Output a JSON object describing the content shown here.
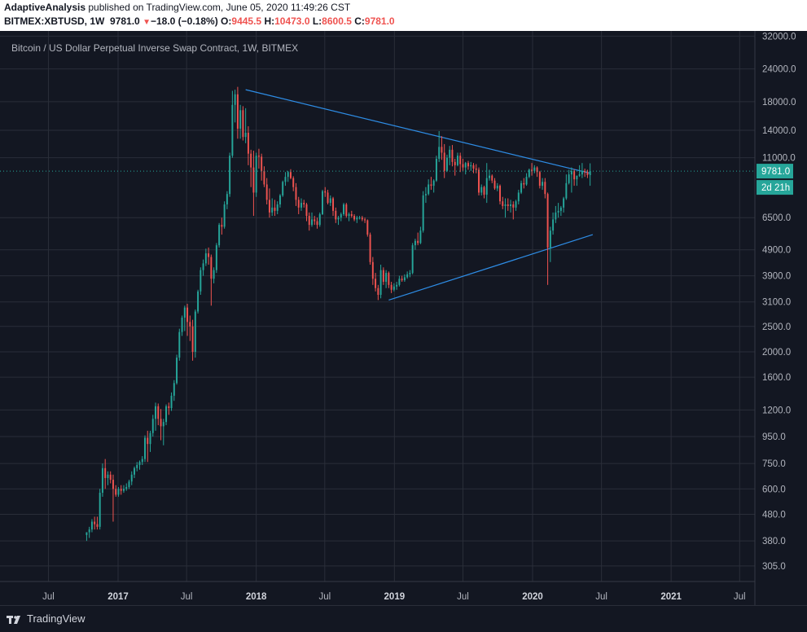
{
  "header": {
    "author": "AdaptiveAnalysis",
    "published": " published on TradingView.com, June 05, 2020 11:49:26 CST",
    "symbol": "BITMEX:XBTUSD, 1W",
    "last": "9781.0",
    "change": "−18.0 (−0.18%)",
    "open_label": "O:",
    "open": "9445.5",
    "high_label": "H:",
    "high": "10473.0",
    "low_label": "L:",
    "low": "8600.5",
    "close_label": "C:",
    "close": "9781.0"
  },
  "footer": {
    "brand": "TradingView",
    "logo_icon": "tradingview-logo-icon"
  },
  "chart_data": {
    "type": "candlestick",
    "title": "Bitcoin / US Dollar Perpetual Inverse Swap Contract, 1W, BITMEX",
    "y_scale": "log",
    "ylim": [
      266,
      33500
    ],
    "x_ticks": [
      "Jul",
      "2017",
      "Jul",
      "2018",
      "Jul",
      "2019",
      "Jul",
      "2020",
      "Jul",
      "2021",
      "Jul"
    ],
    "y_ticks": [
      "32000.0",
      "24000.0",
      "18000.0",
      "14000.0",
      "11000.0",
      "6500.0",
      "4900.0",
      "3900.0",
      "3100.0",
      "2500.0",
      "2000.0",
      "1600.0",
      "1200.0",
      "950.0",
      "750.0",
      "600.0",
      "480.0",
      "380.0",
      "305.0"
    ],
    "last_price_label": "9781.0",
    "countdown_label": "2d 21h",
    "last_price": 9781.0,
    "colors": {
      "up": "#26a69a",
      "down": "#ef5350",
      "background": "#131722",
      "grid": "#2a2e39",
      "trendline": "#2e8de6",
      "text": "#b2b5be"
    },
    "grid": true,
    "trendlines": [
      {
        "from": [
          "2017-12-04",
          20000
        ],
        "to": [
          "2020-06-01",
          9600
        ]
      },
      {
        "from": [
          "2018-12-17",
          3150
        ],
        "to": [
          "2020-06-08",
          5600
        ]
      }
    ],
    "candles": [
      [
        400,
        410,
        380,
        410
      ],
      [
        410,
        430,
        390,
        420
      ],
      [
        420,
        460,
        410,
        450
      ],
      [
        450,
        470,
        420,
        440
      ],
      [
        440,
        470,
        420,
        430
      ],
      [
        430,
        600,
        420,
        580
      ],
      [
        580,
        750,
        560,
        720
      ],
      [
        720,
        780,
        600,
        660
      ],
      [
        660,
        700,
        620,
        680
      ],
      [
        680,
        700,
        630,
        650
      ],
      [
        650,
        680,
        450,
        600
      ],
      [
        600,
        620,
        560,
        570
      ],
      [
        570,
        610,
        560,
        600
      ],
      [
        600,
        620,
        570,
        590
      ],
      [
        590,
        620,
        580,
        600
      ],
      [
        600,
        630,
        590,
        610
      ],
      [
        610,
        650,
        600,
        640
      ],
      [
        640,
        700,
        620,
        680
      ],
      [
        680,
        730,
        660,
        720
      ],
      [
        720,
        760,
        700,
        740
      ],
      [
        740,
        770,
        710,
        760
      ],
      [
        760,
        800,
        740,
        780
      ],
      [
        780,
        960,
        760,
        940
      ],
      [
        940,
        1000,
        760,
        890
      ],
      [
        890,
        1000,
        830,
        980
      ],
      [
        980,
        1150,
        950,
        1110
      ],
      [
        1110,
        1280,
        1000,
        1240
      ],
      [
        1240,
        1270,
        1050,
        1110
      ],
      [
        1110,
        1210,
        920,
        1040
      ],
      [
        1040,
        1110,
        880,
        1080
      ],
      [
        1080,
        1260,
        1050,
        1240
      ],
      [
        1240,
        1280,
        1150,
        1220
      ],
      [
        1220,
        1400,
        1190,
        1360
      ],
      [
        1360,
        1560,
        1300,
        1520
      ],
      [
        1520,
        1950,
        1500,
        1900
      ],
      [
        1900,
        2450,
        1850,
        2380
      ],
      [
        2380,
        2750,
        2300,
        2700
      ],
      [
        2700,
        3000,
        2400,
        2950
      ],
      [
        2950,
        3050,
        2300,
        2600
      ],
      [
        2600,
        2750,
        2200,
        2500
      ],
      [
        2500,
        2650,
        1850,
        2000
      ],
      [
        2000,
        2900,
        1900,
        2850
      ],
      [
        2850,
        3450,
        2800,
        3400
      ],
      [
        3400,
        4200,
        3300,
        4100
      ],
      [
        4100,
        4500,
        3900,
        4350
      ],
      [
        4350,
        4950,
        4250,
        4750
      ],
      [
        4750,
        5000,
        4300,
        4600
      ],
      [
        4600,
        4700,
        3000,
        3800
      ],
      [
        3800,
        4200,
        3650,
        4100
      ],
      [
        4100,
        5200,
        4000,
        5100
      ],
      [
        5100,
        6200,
        5000,
        6100
      ],
      [
        6100,
        6500,
        5600,
        6000
      ],
      [
        6000,
        7500,
        5900,
        7300
      ],
      [
        7300,
        8200,
        7000,
        8000
      ],
      [
        8000,
        11500,
        7800,
        11200
      ],
      [
        11200,
        19800,
        11000,
        17500
      ],
      [
        17500,
        20000,
        15000,
        19200
      ],
      [
        19200,
        20500,
        13000,
        14200
      ],
      [
        14200,
        17500,
        13000,
        16700
      ],
      [
        16700,
        17300,
        12800,
        13200
      ],
      [
        13200,
        17000,
        12500,
        13700
      ],
      [
        13700,
        14500,
        10300,
        11400
      ],
      [
        11400,
        11800,
        8500,
        10100
      ],
      [
        10100,
        11700,
        6600,
        8100
      ],
      [
        8100,
        11500,
        7800,
        11200
      ],
      [
        11200,
        11900,
        10000,
        11100
      ],
      [
        11100,
        11400,
        9000,
        9800
      ],
      [
        9800,
        10200,
        8500,
        8700
      ],
      [
        8700,
        9200,
        7300,
        7600
      ],
      [
        7600,
        8400,
        6500,
        6800
      ],
      [
        6800,
        7700,
        6600,
        7100
      ],
      [
        7100,
        7600,
        6600,
        6900
      ],
      [
        6900,
        7500,
        6700,
        7300
      ],
      [
        7300,
        8000,
        7100,
        7900
      ],
      [
        7900,
        9000,
        7800,
        8900
      ],
      [
        8900,
        9700,
        8600,
        9300
      ],
      [
        9300,
        9800,
        8900,
        9700
      ],
      [
        9700,
        9950,
        9100,
        9200
      ],
      [
        9200,
        9350,
        8200,
        8500
      ],
      [
        8500,
        8800,
        7200,
        7600
      ],
      [
        7600,
        7800,
        6700,
        7100
      ],
      [
        7100,
        7700,
        6900,
        7400
      ],
      [
        7400,
        7600,
        7100,
        7300
      ],
      [
        7300,
        7400,
        6300,
        6600
      ],
      [
        6600,
        6800,
        5800,
        6100
      ],
      [
        6100,
        6800,
        6000,
        6400
      ],
      [
        6400,
        6600,
        6100,
        6300
      ],
      [
        6300,
        6500,
        5900,
        6100
      ],
      [
        6100,
        6800,
        6000,
        6700
      ],
      [
        6700,
        8300,
        6650,
        8200
      ],
      [
        8200,
        8500,
        7800,
        8100
      ],
      [
        8100,
        8300,
        7300,
        7400
      ],
      [
        7400,
        7900,
        7200,
        7700
      ],
      [
        7700,
        7800,
        6600,
        6900
      ],
      [
        6900,
        7100,
        6200,
        6400
      ],
      [
        6400,
        6600,
        6100,
        6500
      ],
      [
        6500,
        6800,
        6300,
        6700
      ],
      [
        6700,
        7400,
        6600,
        7300
      ],
      [
        7300,
        7400,
        6500,
        6600
      ],
      [
        6600,
        6800,
        6300,
        6700
      ],
      [
        6700,
        6900,
        6500,
        6600
      ],
      [
        6600,
        6700,
        6300,
        6400
      ],
      [
        6400,
        6600,
        6200,
        6500
      ],
      [
        6500,
        6600,
        6400,
        6500
      ],
      [
        6500,
        6600,
        6300,
        6400
      ],
      [
        6400,
        6500,
        6200,
        6350
      ],
      [
        6350,
        6400,
        5500,
        5600
      ],
      [
        5600,
        5700,
        4300,
        4400
      ],
      [
        4400,
        4600,
        3600,
        3800
      ],
      [
        3800,
        4000,
        3400,
        3500
      ],
      [
        3500,
        3600,
        3150,
        3300
      ],
      [
        3300,
        4300,
        3200,
        4100
      ],
      [
        4100,
        4200,
        3600,
        3700
      ],
      [
        3700,
        4100,
        3500,
        4000
      ],
      [
        4000,
        4050,
        3500,
        3600
      ],
      [
        3600,
        3700,
        3350,
        3450
      ],
      [
        3450,
        3650,
        3400,
        3550
      ],
      [
        3550,
        3700,
        3450,
        3600
      ],
      [
        3600,
        3900,
        3550,
        3800
      ],
      [
        3800,
        3900,
        3700,
        3750
      ],
      [
        3750,
        3950,
        3700,
        3850
      ],
      [
        3850,
        4050,
        3800,
        3950
      ],
      [
        3950,
        4100,
        3850,
        4000
      ],
      [
        4000,
        5200,
        3950,
        5100
      ],
      [
        5100,
        5400,
        4900,
        5300
      ],
      [
        5300,
        5700,
        5100,
        5200
      ],
      [
        5200,
        6000,
        5150,
        5800
      ],
      [
        5800,
        8200,
        5700,
        7900
      ],
      [
        7900,
        8500,
        7400,
        8000
      ],
      [
        8000,
        9100,
        7900,
        8700
      ],
      [
        8700,
        9300,
        8300,
        8600
      ],
      [
        8600,
        9100,
        8100,
        9000
      ],
      [
        9000,
        11200,
        8900,
        10900
      ],
      [
        10900,
        13900,
        10600,
        12100
      ],
      [
        12100,
        13300,
        10800,
        11500
      ],
      [
        11500,
        12400,
        9200,
        9800
      ],
      [
        9800,
        11300,
        9700,
        11000
      ],
      [
        11000,
        12200,
        10300,
        11800
      ],
      [
        11800,
        12300,
        10200,
        10600
      ],
      [
        10600,
        10900,
        9400,
        10300
      ],
      [
        10300,
        11500,
        10200,
        11200
      ],
      [
        11200,
        11500,
        9700,
        10400
      ],
      [
        10400,
        10900,
        9800,
        10100
      ],
      [
        10100,
        10600,
        9500,
        10500
      ],
      [
        10500,
        10700,
        9900,
        10200
      ],
      [
        10200,
        10600,
        9800,
        10300
      ],
      [
        10300,
        10500,
        9600,
        10000
      ],
      [
        10000,
        10400,
        9600,
        9900
      ],
      [
        9900,
        10100,
        7900,
        8100
      ],
      [
        8100,
        8700,
        7900,
        8500
      ],
      [
        8500,
        8600,
        7700,
        7950
      ],
      [
        7950,
        10500,
        7400,
        9200
      ],
      [
        9200,
        9900,
        9000,
        9400
      ],
      [
        9400,
        9500,
        8800,
        9000
      ],
      [
        9000,
        9200,
        8300,
        8400
      ],
      [
        8400,
        8800,
        8200,
        8600
      ],
      [
        8600,
        8700,
        7300,
        7500
      ],
      [
        7500,
        7800,
        7000,
        7200
      ],
      [
        7200,
        7700,
        6500,
        7300
      ],
      [
        7300,
        7700,
        6900,
        7200
      ],
      [
        7200,
        7600,
        6800,
        7300
      ],
      [
        7300,
        7500,
        6400,
        7100
      ],
      [
        7100,
        7600,
        6900,
        7500
      ],
      [
        7500,
        8300,
        7300,
        8100
      ],
      [
        8100,
        9000,
        8000,
        8800
      ],
      [
        8800,
        9200,
        8400,
        8700
      ],
      [
        8700,
        9600,
        8600,
        9300
      ],
      [
        9300,
        10000,
        9200,
        9900
      ],
      [
        9900,
        10500,
        9400,
        9800
      ],
      [
        9800,
        10300,
        9600,
        10100
      ],
      [
        10100,
        10200,
        9300,
        9700
      ],
      [
        9700,
        9800,
        8400,
        8600
      ],
      [
        8600,
        9200,
        8300,
        8900
      ],
      [
        8900,
        9200,
        7700,
        8000
      ],
      [
        8000,
        8100,
        3600,
        5000
      ],
      [
        5000,
        6000,
        4400,
        5800
      ],
      [
        5800,
        6800,
        5600,
        6400
      ],
      [
        6400,
        7200,
        6200,
        6800
      ],
      [
        6800,
        7400,
        6500,
        6900
      ],
      [
        6900,
        7200,
        6600,
        7100
      ],
      [
        7100,
        7800,
        6800,
        7700
      ],
      [
        7700,
        9500,
        7600,
        8800
      ],
      [
        8800,
        9900,
        8700,
        9500
      ],
      [
        9500,
        10100,
        8100,
        9800
      ],
      [
        9800,
        9950,
        8600,
        9100
      ],
      [
        9100,
        9400,
        8600,
        9400
      ],
      [
        9400,
        10300,
        9300,
        9500
      ],
      [
        9500,
        10500,
        9200,
        9800
      ],
      [
        9800,
        10000,
        9300,
        9700
      ],
      [
        9700,
        9900,
        9200,
        9450
      ],
      [
        9445.5,
        10473,
        8600.5,
        9781
      ]
    ]
  }
}
